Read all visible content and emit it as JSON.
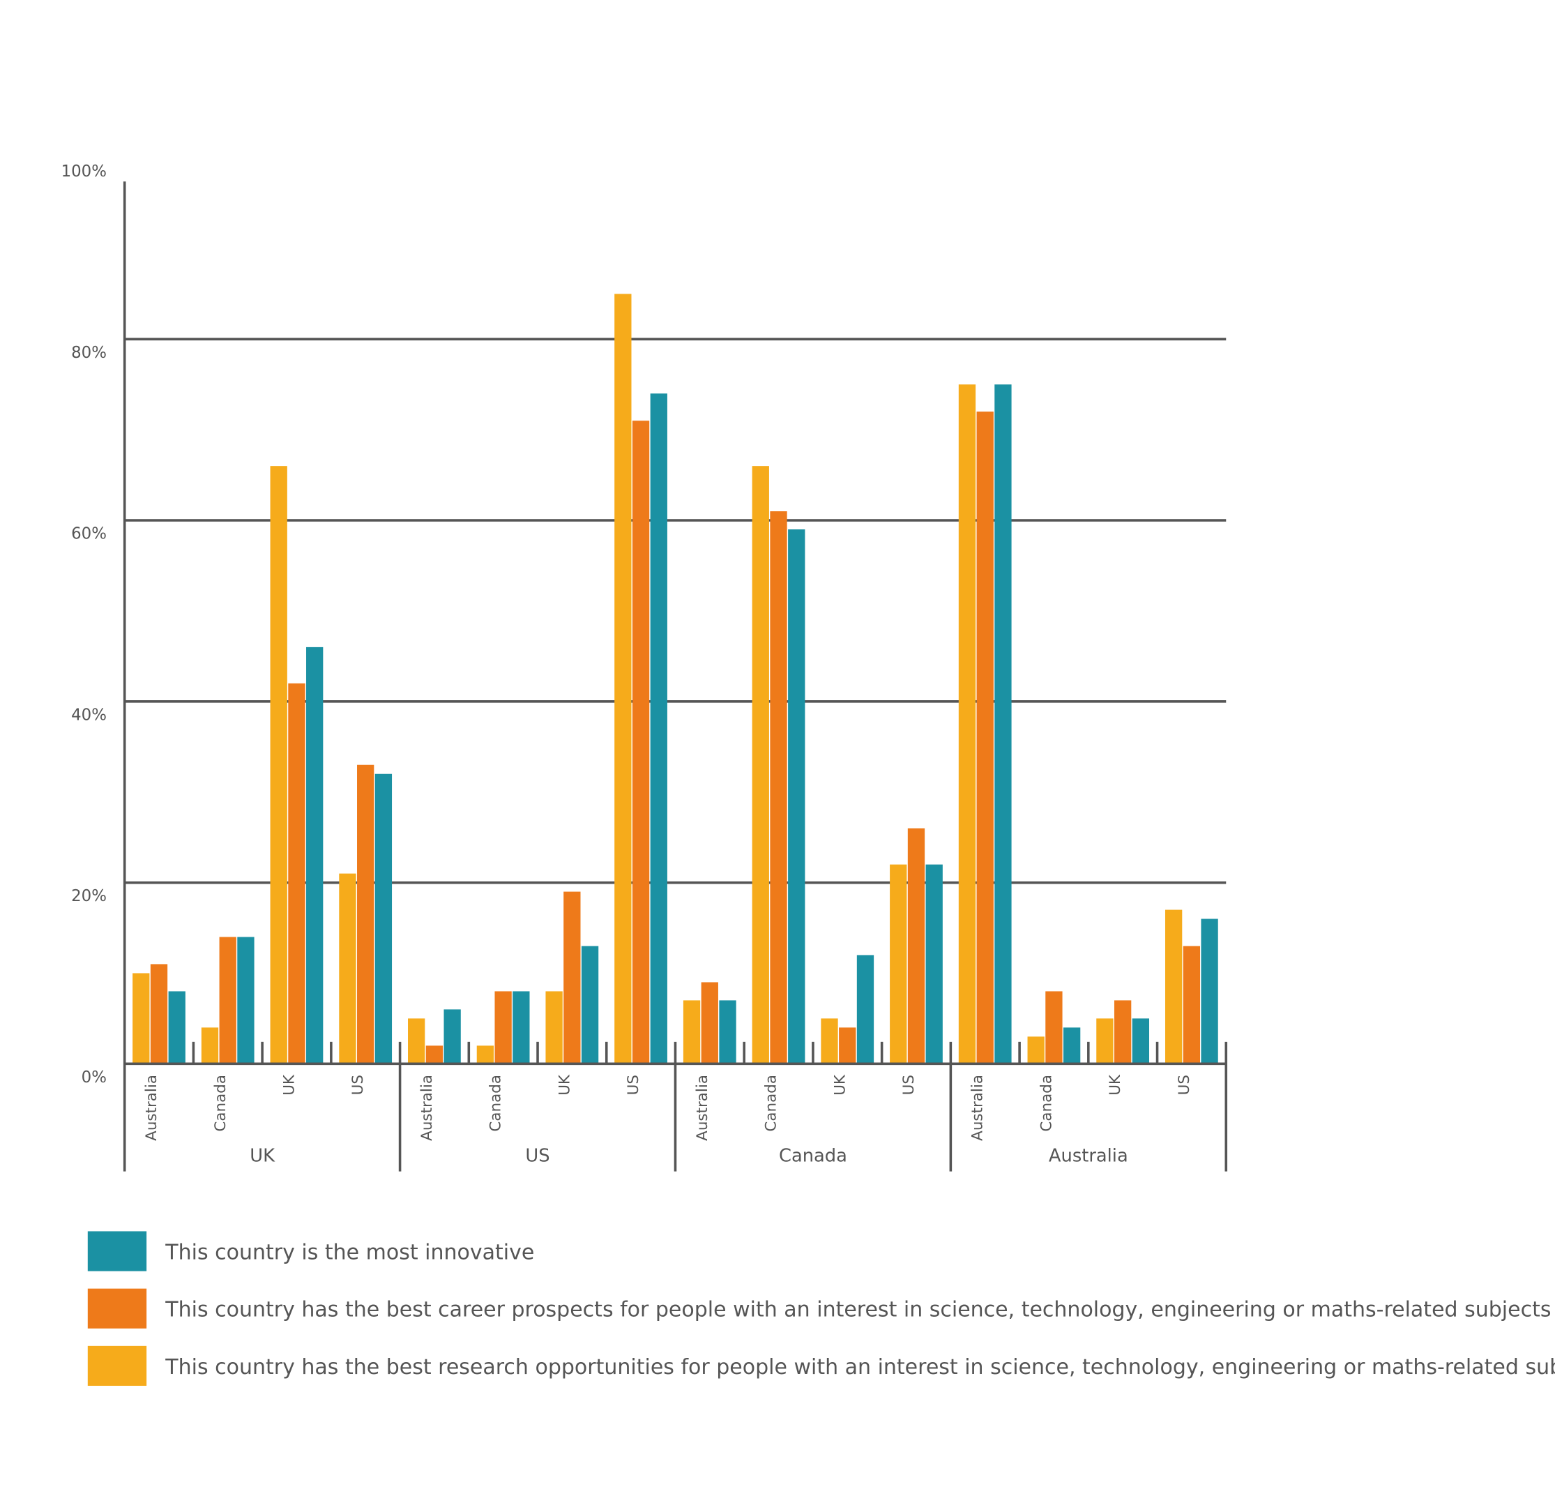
{
  "chart_data": {
    "type": "bar",
    "groups": [
      "UK",
      "US",
      "Canada",
      "Australia"
    ],
    "categories": [
      "Australia",
      "Canada",
      "UK",
      "US",
      "Australia",
      "Canada",
      "UK",
      "US",
      "Australia",
      "Canada",
      "UK",
      "US",
      "Australia",
      "Canada",
      "UK",
      "US"
    ],
    "series": [
      {
        "name": "This country has the best research opportunities for people with an interest in science, technology, engineering or maths-related subjects",
        "color": "#f6ab1b",
        "values": [
          10,
          4,
          66,
          21,
          5,
          2,
          8,
          85,
          7,
          66,
          5,
          22,
          75,
          3,
          5,
          17
        ]
      },
      {
        "name": "This country has the best career prospects for people with an interest in science, technology, engineering or maths-related subjects",
        "color": "#ee7a1a",
        "values": [
          11,
          14,
          42,
          33,
          2,
          8,
          19,
          71,
          9,
          61,
          4,
          26,
          72,
          8,
          7,
          13
        ]
      },
      {
        "name": "This country is the most innovative",
        "color": "#1b91a3",
        "values": [
          8,
          14,
          46,
          32,
          6,
          8,
          13,
          74,
          7,
          59,
          12,
          22,
          75,
          4,
          5,
          16
        ]
      }
    ],
    "ylim": [
      0,
      100
    ],
    "yticks": [
      {
        "value": 0,
        "label": "0%"
      },
      {
        "value": 20,
        "label": "20%"
      },
      {
        "value": 40,
        "label": "40%"
      },
      {
        "value": 60,
        "label": "60%"
      },
      {
        "value": 80,
        "label": "80%"
      },
      {
        "value": 100,
        "label": "100%"
      }
    ],
    "grid": true
  }
}
